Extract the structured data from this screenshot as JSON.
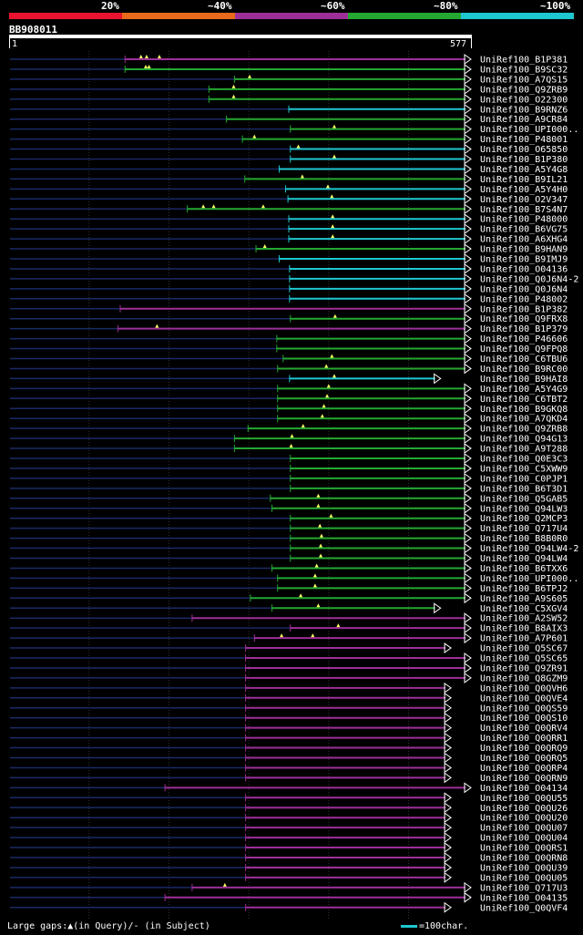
{
  "legend": {
    "labels": [
      "20%",
      "~40%",
      "~60%",
      "~80%",
      "~100%"
    ],
    "colors": [
      "#e8132e",
      "#e86a1a",
      "#9d2f98",
      "#24a832",
      "#1fc7d0"
    ]
  },
  "query": {
    "name": "BB908011",
    "start_label": "1",
    "end_label": "577",
    "length": 577
  },
  "footer": {
    "text": "Large gaps:▲(in Query)/- (in Subject)",
    "scale_text": "=100char."
  },
  "hits": [
    {
      "label": "UniRef100_B1P381",
      "s": 145,
      "e": 577,
      "c": 2,
      "m": [
        165,
        172,
        188
      ],
      "arrow": true
    },
    {
      "label": "UniRef100_B9SC32",
      "s": 145,
      "e": 577,
      "c": 3,
      "m": [
        171,
        175
      ],
      "arrow": true
    },
    {
      "label": "UniRef100_A7QS15",
      "s": 282,
      "e": 577,
      "c": 3,
      "m": [
        301
      ],
      "arrow": true
    },
    {
      "label": "UniRef100_Q9ZRB9",
      "s": 250,
      "e": 577,
      "c": 3,
      "m": [
        281
      ],
      "arrow": true
    },
    {
      "label": "UniRef100_O22300",
      "s": 250,
      "e": 577,
      "c": 3,
      "m": [
        281
      ],
      "arrow": true
    },
    {
      "label": "UniRef100_B9RNZ6",
      "s": 350,
      "e": 577,
      "c": 4,
      "m": [],
      "arrow": true
    },
    {
      "label": "UniRef100_A9CR84",
      "s": 272,
      "e": 577,
      "c": 3,
      "m": [],
      "arrow": true
    },
    {
      "label": "UniRef100_UPI000..",
      "s": 352,
      "e": 577,
      "c": 3,
      "m": [
        407
      ],
      "arrow": true
    },
    {
      "label": "UniRef100_P48001",
      "s": 292,
      "e": 577,
      "c": 3,
      "m": [
        307
      ],
      "arrow": true
    },
    {
      "label": "UniRef100_O65850",
      "s": 352,
      "e": 577,
      "c": 4,
      "m": [
        362
      ],
      "arrow": true
    },
    {
      "label": "UniRef100_B1P380",
      "s": 352,
      "e": 577,
      "c": 4,
      "m": [
        407
      ],
      "arrow": true
    },
    {
      "label": "UniRef100_A5Y4G8",
      "s": 338,
      "e": 577,
      "c": 4,
      "m": [],
      "arrow": true
    },
    {
      "label": "UniRef100_B9IL21",
      "s": 295,
      "e": 577,
      "c": 3,
      "m": [
        367
      ],
      "arrow": true
    },
    {
      "label": "UniRef100_A5Y4H0",
      "s": 346,
      "e": 577,
      "c": 4,
      "m": [
        399
      ],
      "arrow": true
    },
    {
      "label": "UniRef100_O2V347",
      "s": 349,
      "e": 577,
      "c": 4,
      "m": [
        404
      ],
      "arrow": true
    },
    {
      "label": "UniRef100_B7S4N7",
      "s": 223,
      "e": 577,
      "c": 3,
      "m": [
        243,
        256,
        318
      ],
      "arrow": true
    },
    {
      "label": "UniRef100_P48000",
      "s": 350,
      "e": 577,
      "c": 4,
      "m": [
        405
      ],
      "arrow": true
    },
    {
      "label": "UniRef100_B6VG75",
      "s": 350,
      "e": 577,
      "c": 4,
      "m": [
        405
      ],
      "arrow": true
    },
    {
      "label": "UniRef100_A6XHG4",
      "s": 350,
      "e": 577,
      "c": 4,
      "m": [
        405
      ],
      "arrow": true
    },
    {
      "label": "UniRef100_B9HAN9",
      "s": 309,
      "e": 577,
      "c": 3,
      "m": [
        320
      ],
      "arrow": true
    },
    {
      "label": "UniRef100_B9IMJ9",
      "s": 338,
      "e": 577,
      "c": 4,
      "m": [],
      "arrow": true
    },
    {
      "label": "UniRef100_O04136",
      "s": 351,
      "e": 577,
      "c": 4,
      "m": [],
      "arrow": true
    },
    {
      "label": "UniRef100_Q0J6N4-2",
      "s": 351,
      "e": 577,
      "c": 4,
      "m": [],
      "arrow": true
    },
    {
      "label": "UniRef100_Q0J6N4",
      "s": 351,
      "e": 577,
      "c": 4,
      "m": [],
      "arrow": true
    },
    {
      "label": "UniRef100_P48002",
      "s": 351,
      "e": 577,
      "c": 4,
      "m": [],
      "arrow": true
    },
    {
      "label": "UniRef100_B1P382",
      "s": 139,
      "e": 577,
      "c": 2,
      "m": [],
      "arrow": true
    },
    {
      "label": "UniRef100_Q9FRX8",
      "s": 352,
      "e": 577,
      "c": 3,
      "m": [
        408
      ],
      "arrow": true
    },
    {
      "label": "UniRef100_B1P379",
      "s": 136,
      "e": 577,
      "c": 2,
      "m": [
        185
      ],
      "arrow": true
    },
    {
      "label": "UniRef100_P46606",
      "s": 335,
      "e": 577,
      "c": 3,
      "m": [],
      "arrow": true
    },
    {
      "label": "UniRef100_Q9FPQ8",
      "s": 335,
      "e": 577,
      "c": 3,
      "m": [],
      "arrow": true
    },
    {
      "label": "UniRef100_C6TBU6",
      "s": 343,
      "e": 577,
      "c": 3,
      "m": [
        404
      ],
      "arrow": true
    },
    {
      "label": "UniRef100_B9RC00",
      "s": 336,
      "e": 577,
      "c": 3,
      "m": [
        397
      ],
      "arrow": true
    },
    {
      "label": "UniRef100_B9HAI8",
      "s": 351,
      "e": 539,
      "c": 4,
      "m": [
        407
      ],
      "arrow": true
    },
    {
      "label": "UniRef100_A5Y4G9",
      "s": 336,
      "e": 577,
      "c": 3,
      "m": [
        400
      ],
      "arrow": true
    },
    {
      "label": "UniRef100_C6TBT2",
      "s": 336,
      "e": 577,
      "c": 3,
      "m": [
        398
      ],
      "arrow": true
    },
    {
      "label": "UniRef100_B9GKQ8",
      "s": 336,
      "e": 577,
      "c": 3,
      "m": [
        394
      ],
      "arrow": true
    },
    {
      "label": "UniRef100_A7QKD4",
      "s": 336,
      "e": 577,
      "c": 3,
      "m": [
        392
      ],
      "arrow": true
    },
    {
      "label": "UniRef100_Q9ZRB8",
      "s": 299,
      "e": 577,
      "c": 3,
      "m": [
        368
      ],
      "arrow": true
    },
    {
      "label": "UniRef100_Q94G13",
      "s": 282,
      "e": 577,
      "c": 3,
      "m": [
        354
      ],
      "arrow": true
    },
    {
      "label": "UniRef100_A9T288",
      "s": 282,
      "e": 577,
      "c": 3,
      "m": [
        353
      ],
      "arrow": true
    },
    {
      "label": "UniRef100_Q0E3C3",
      "s": 352,
      "e": 577,
      "c": 3,
      "m": [],
      "arrow": true
    },
    {
      "label": "UniRef100_C5XWW9",
      "s": 352,
      "e": 577,
      "c": 3,
      "m": [],
      "arrow": true
    },
    {
      "label": "UniRef100_C0PJP1",
      "s": 352,
      "e": 577,
      "c": 3,
      "m": [],
      "arrow": true
    },
    {
      "label": "UniRef100_B6T3D1",
      "s": 352,
      "e": 577,
      "c": 3,
      "m": [],
      "arrow": true
    },
    {
      "label": "UniRef100_Q5GAB5",
      "s": 327,
      "e": 577,
      "c": 3,
      "m": [
        387
      ],
      "arrow": true
    },
    {
      "label": "UniRef100_Q94LW3",
      "s": 329,
      "e": 577,
      "c": 3,
      "m": [
        387
      ],
      "arrow": true
    },
    {
      "label": "UniRef100_Q2MCP3",
      "s": 352,
      "e": 577,
      "c": 3,
      "m": [
        403
      ],
      "arrow": true
    },
    {
      "label": "UniRef100_Q717U4",
      "s": 352,
      "e": 577,
      "c": 3,
      "m": [
        389
      ],
      "arrow": true
    },
    {
      "label": "UniRef100_B8B0R0",
      "s": 352,
      "e": 577,
      "c": 3,
      "m": [
        391
      ],
      "arrow": true
    },
    {
      "label": "UniRef100_Q94LW4-2",
      "s": 352,
      "e": 577,
      "c": 3,
      "m": [
        390
      ],
      "arrow": true
    },
    {
      "label": "UniRef100_Q94LW4",
      "s": 352,
      "e": 577,
      "c": 3,
      "m": [
        390
      ],
      "arrow": true
    },
    {
      "label": "UniRef100_B6TXX6",
      "s": 329,
      "e": 577,
      "c": 3,
      "m": [
        385
      ],
      "arrow": true
    },
    {
      "label": "UniRef100_UPI000..",
      "s": 336,
      "e": 577,
      "c": 3,
      "m": [
        383
      ],
      "arrow": true
    },
    {
      "label": "UniRef100_B6TPJ2",
      "s": 336,
      "e": 577,
      "c": 3,
      "m": [
        383
      ],
      "arrow": true
    },
    {
      "label": "UniRef100_A9S605",
      "s": 302,
      "e": 577,
      "c": 3,
      "m": [
        365
      ],
      "arrow": true
    },
    {
      "label": "UniRef100_C5XGV4",
      "s": 329,
      "e": 539,
      "c": 3,
      "m": [
        387
      ],
      "arrow": true
    },
    {
      "label": "UniRef100_A2SW52",
      "s": 229,
      "e": 577,
      "c": 2,
      "m": [],
      "arrow": true
    },
    {
      "label": "UniRef100_B8AIX3",
      "s": 352,
      "e": 577,
      "c": 2,
      "m": [
        412
      ],
      "arrow": true
    },
    {
      "label": "UniRef100_A7P601",
      "s": 307,
      "e": 577,
      "c": 2,
      "m": [
        341,
        380
      ],
      "arrow": true
    },
    {
      "label": "UniRef100_Q5SC67",
      "s": 296,
      "e": 552,
      "c": 2,
      "m": [],
      "arrow": true
    },
    {
      "label": "UniRef100_Q5SC65",
      "s": 296,
      "e": 577,
      "c": 2,
      "m": [],
      "arrow": true
    },
    {
      "label": "UniRef100_Q9ZR91",
      "s": 296,
      "e": 577,
      "c": 2,
      "m": [],
      "arrow": true
    },
    {
      "label": "UniRef100_Q8GZM9",
      "s": 296,
      "e": 577,
      "c": 2,
      "m": [],
      "arrow": true
    },
    {
      "label": "UniRef100_Q0QVH6",
      "s": 296,
      "e": 552,
      "c": 2,
      "m": [],
      "arrow": true
    },
    {
      "label": "UniRef100_Q0QVE4",
      "s": 296,
      "e": 552,
      "c": 2,
      "m": [],
      "arrow": true
    },
    {
      "label": "UniRef100_Q0QS59",
      "s": 296,
      "e": 552,
      "c": 2,
      "m": [],
      "arrow": true
    },
    {
      "label": "UniRef100_Q0QS10",
      "s": 296,
      "e": 552,
      "c": 2,
      "m": [],
      "arrow": true
    },
    {
      "label": "UniRef100_Q0QRV4",
      "s": 296,
      "e": 552,
      "c": 2,
      "m": [],
      "arrow": true
    },
    {
      "label": "UniRef100_Q0QRR1",
      "s": 296,
      "e": 552,
      "c": 2,
      "m": [],
      "arrow": true
    },
    {
      "label": "UniRef100_Q0QRQ9",
      "s": 296,
      "e": 552,
      "c": 2,
      "m": [],
      "arrow": true
    },
    {
      "label": "UniRef100_Q0QRQ5",
      "s": 296,
      "e": 552,
      "c": 2,
      "m": [],
      "arrow": true
    },
    {
      "label": "UniRef100_Q0QRP4",
      "s": 296,
      "e": 552,
      "c": 2,
      "m": [],
      "arrow": true
    },
    {
      "label": "UniRef100_Q0QRN9",
      "s": 296,
      "e": 552,
      "c": 2,
      "m": [],
      "arrow": true
    },
    {
      "label": "UniRef100_O04134",
      "s": 195,
      "e": 577,
      "c": 2,
      "m": [],
      "arrow": true
    },
    {
      "label": "UniRef100_Q0QU55",
      "s": 296,
      "e": 552,
      "c": 2,
      "m": [],
      "arrow": true
    },
    {
      "label": "UniRef100_Q0QU26",
      "s": 296,
      "e": 552,
      "c": 2,
      "m": [],
      "arrow": true
    },
    {
      "label": "UniRef100_Q0QU20",
      "s": 296,
      "e": 552,
      "c": 2,
      "m": [],
      "arrow": true
    },
    {
      "label": "UniRef100_Q0QU07",
      "s": 296,
      "e": 552,
      "c": 2,
      "m": [],
      "arrow": true
    },
    {
      "label": "UniRef100_Q0QU04",
      "s": 296,
      "e": 552,
      "c": 2,
      "m": [],
      "arrow": true
    },
    {
      "label": "UniRef100_Q0QRS1",
      "s": 296,
      "e": 552,
      "c": 2,
      "m": [],
      "arrow": true
    },
    {
      "label": "UniRef100_Q0QRN8",
      "s": 296,
      "e": 552,
      "c": 2,
      "m": [],
      "arrow": true
    },
    {
      "label": "UniRef100_Q0QU39",
      "s": 296,
      "e": 552,
      "c": 2,
      "m": [],
      "arrow": true
    },
    {
      "label": "UniRef100_Q0QU05",
      "s": 296,
      "e": 552,
      "c": 2,
      "m": [],
      "arrow": true
    },
    {
      "label": "UniRef100_Q717U3",
      "s": 229,
      "e": 577,
      "c": 2,
      "m": [
        270
      ],
      "arrow": true
    },
    {
      "label": "UniRef100_O04135",
      "s": 195,
      "e": 577,
      "c": 2,
      "m": [],
      "arrow": true
    },
    {
      "label": "UniRef100_Q0QVF4",
      "s": 296,
      "e": 552,
      "c": 2,
      "m": [],
      "arrow": true
    }
  ]
}
